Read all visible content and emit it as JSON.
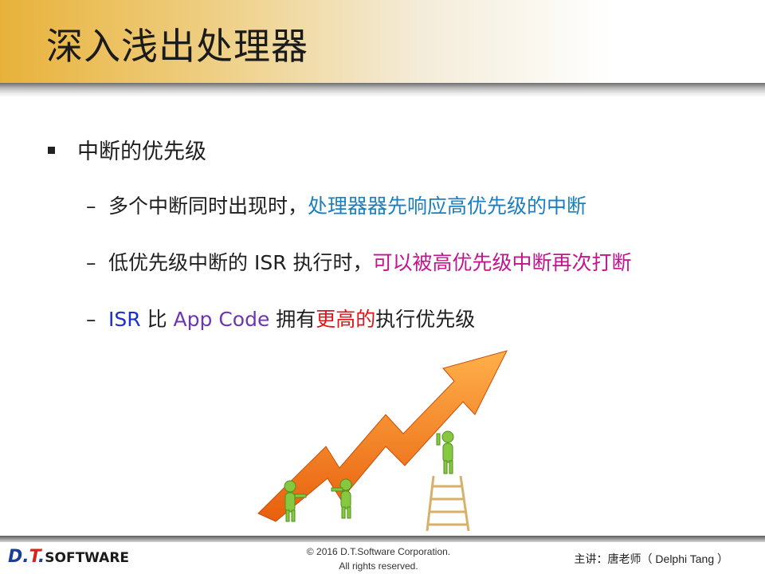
{
  "header": {
    "title": "深入浅出处理器"
  },
  "content": {
    "bullet": "中断的优先级",
    "sub1": {
      "plain": "多个中断同时出现时，",
      "highlight": "处理器器先响应高优先级的中断"
    },
    "sub2": {
      "plain": "低优先级中断的 ISR 执行时，",
      "highlight": "可以被高优先级中断再次打断"
    },
    "sub3": {
      "isr": "ISR",
      "bi": " 比 ",
      "app": "App Code",
      "yong": " 拥有",
      "higher": "更高的",
      "rest": "执行优先级"
    },
    "dash": "–"
  },
  "footer": {
    "logo_d": "D.",
    "logo_t": "T",
    "logo_dot": ".",
    "logo_software": "SOFTWARE",
    "copyright_line1": "© 2016 D.T.Software Corporation.",
    "copyright_line2": "All rights reserved.",
    "speaker": "主讲：唐老师（ Delphi Tang ）"
  },
  "colors": {
    "highlight_blue": "#1a7fc1",
    "highlight_magenta": "#c2148c",
    "isr_blue": "#1a2fd0",
    "app_purple": "#6c35b5",
    "emphasis_red": "#e0141a",
    "arrow_orange": "#f07d1a",
    "figure_green": "#7ec23a"
  }
}
